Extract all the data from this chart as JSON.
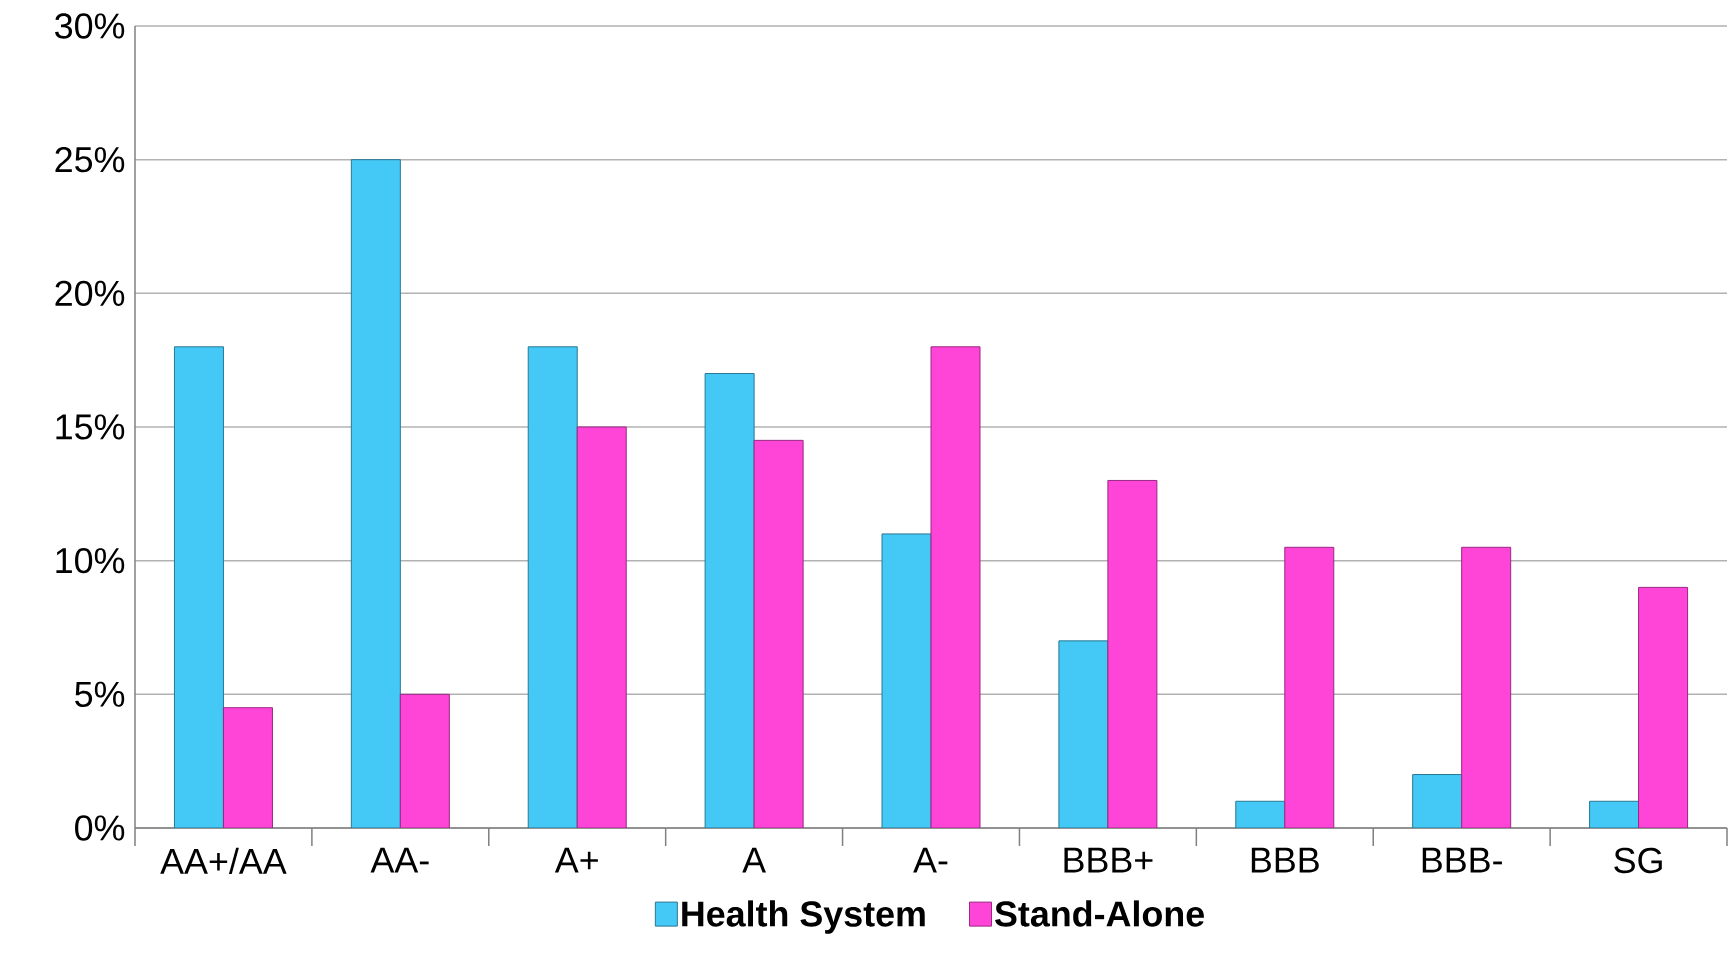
{
  "chart_data": {
    "type": "bar",
    "categories": [
      "AA+/AA",
      "AA-",
      "A+",
      "A",
      "A-",
      "BBB+",
      "BBB",
      "BBB-",
      "SG"
    ],
    "series": [
      {
        "name": "Health System",
        "color": "#44c8f5",
        "values": [
          18,
          25,
          18,
          17,
          11,
          7,
          1,
          2,
          1
        ]
      },
      {
        "name": "Stand-Alone",
        "color": "#ff44d8",
        "values": [
          4.5,
          5,
          15,
          14.5,
          18,
          13,
          10.5,
          10.5,
          9
        ]
      }
    ],
    "ylim": [
      0,
      30
    ],
    "yticks": [
      {
        "value": 0,
        "label": "0%"
      },
      {
        "value": 5,
        "label": "5%"
      },
      {
        "value": 10,
        "label": "10%"
      },
      {
        "value": 15,
        "label": "15%"
      },
      {
        "value": 20,
        "label": "20%"
      },
      {
        "value": 25,
        "label": "25%"
      },
      {
        "value": 30,
        "label": "30%"
      }
    ],
    "grid": "y",
    "legend": "bottom"
  }
}
